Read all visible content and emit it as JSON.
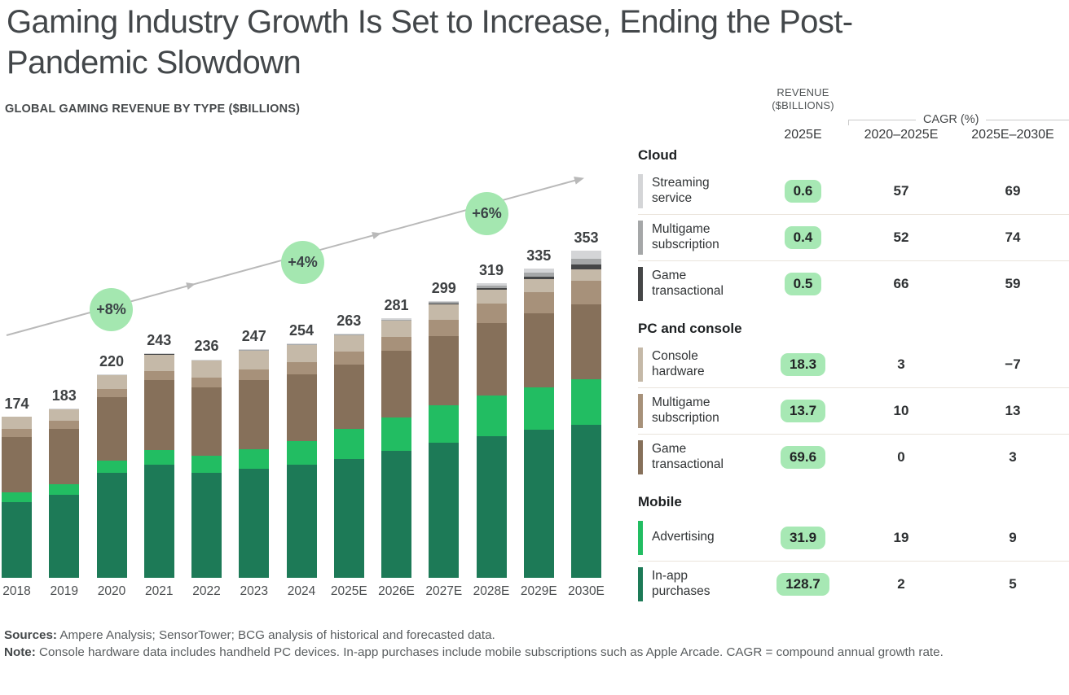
{
  "header": {
    "title_line1": "Gaming Industry Growth Is Set to Increase, Ending the Post-",
    "title_line2": "Pandemic Slowdown",
    "subtitle": "GLOBAL GAMING REVENUE BY TYPE ($BILLIONS)"
  },
  "chart_data": {
    "type": "bar",
    "subtype": "stacked-vertical",
    "title": "GLOBAL GAMING REVENUE BY TYPE ($BILLIONS)",
    "categories": [
      "2018",
      "2019",
      "2020",
      "2021",
      "2022",
      "2023",
      "2024",
      "2025E",
      "2026E",
      "2027E",
      "2028E",
      "2029E",
      "2030E"
    ],
    "totals": [
      "174",
      "183",
      "220",
      "243",
      "236",
      "247",
      "254",
      "263",
      "281",
      "299",
      "319",
      "335",
      "353"
    ],
    "series": [
      {
        "key": "in-app-purchases",
        "name": "In-app purchases",
        "group": "Mobile",
        "color": "#1d7a57",
        "values": [
          82,
          90,
          113,
          122,
          113,
          118,
          122,
          128.7,
          137,
          146,
          153,
          160,
          165
        ]
      },
      {
        "key": "advertising",
        "name": "Advertising",
        "group": "Mobile",
        "color": "#22bd62",
        "values": [
          10,
          11,
          13.5,
          16,
          19,
          21,
          26,
          31.9,
          36,
          40,
          44,
          46,
          49.5
        ]
      },
      {
        "key": "game-transactional-pc",
        "name": "Game transactional",
        "group": "PC and console",
        "color": "#86705a",
        "values": [
          60,
          60,
          69,
          76,
          74,
          75,
          72,
          69.6,
          72,
          75,
          78,
          80,
          81
        ]
      },
      {
        "key": "multigame-subscription-pc",
        "name": "Multigame subscription",
        "group": "PC and console",
        "color": "#a7917a",
        "values": [
          9,
          8.5,
          8.5,
          9.5,
          10,
          11,
          12.5,
          13.7,
          15.5,
          18,
          21,
          22.4,
          25
        ]
      },
      {
        "key": "console-hardware",
        "name": "Console hardware",
        "group": "PC and console",
        "color": "#c5b9a8",
        "values": [
          13,
          13,
          15.8,
          18.5,
          19.5,
          21,
          19.5,
          18.3,
          17,
          16,
          15,
          14,
          12.7
        ]
      },
      {
        "key": "game-transactional-cloud",
        "name": "Game transactional",
        "group": "Cloud",
        "color": "#454647",
        "values": [
          0,
          0.1,
          0.1,
          0.1,
          0.2,
          0.3,
          0.4,
          0.5,
          0.8,
          1.3,
          2,
          3.2,
          5.1
        ]
      },
      {
        "key": "multigame-subscription-cloud",
        "name": "Multigame subscription",
        "group": "Cloud",
        "color": "#a5a7a8",
        "values": [
          0,
          0,
          0.1,
          0.1,
          0.1,
          0.2,
          0.3,
          0.4,
          0.7,
          1.2,
          2.1,
          3.7,
          6.4
        ]
      },
      {
        "key": "streaming-service",
        "name": "Streaming service",
        "group": "Cloud",
        "color": "#d4d5d7",
        "values": [
          0,
          0.1,
          0.1,
          0.2,
          0.2,
          0.3,
          0.4,
          0.6,
          1,
          1.7,
          2.9,
          4.9,
          8.3
        ]
      }
    ],
    "growth_annotations": [
      {
        "label": "+8%",
        "near_year": "2020"
      },
      {
        "label": "+4%",
        "near_year": "2024"
      },
      {
        "label": "+6%",
        "near_year": "2028E"
      }
    ],
    "xlabel": "",
    "ylabel": "Revenue ($billions)",
    "ylim": [
      0,
      380
    ],
    "grid": false,
    "legend_position": "right-table",
    "trend_arrow": true
  },
  "table": {
    "header": {
      "revenue_line1": "REVENUE",
      "revenue_line2": "($BILLIONS)",
      "cagr": "CAGR (%)",
      "col_revenue_period": "2025E",
      "col_cagr1": "2020–2025E",
      "col_cagr2": "2025E–2030E"
    },
    "sections": [
      {
        "title": "Cloud",
        "rows": [
          {
            "label": "Streaming service",
            "swatch": "#d4d5d7",
            "revenue": "0.6",
            "cagr1": "57",
            "cagr2": "69"
          },
          {
            "label": "Multigame subscription",
            "swatch": "#a5a7a8",
            "revenue": "0.4",
            "cagr1": "52",
            "cagr2": "74"
          },
          {
            "label": "Game transactional",
            "swatch": "#454647",
            "revenue": "0.5",
            "cagr1": "66",
            "cagr2": "59"
          }
        ]
      },
      {
        "title": "PC and console",
        "rows": [
          {
            "label": "Console hardware",
            "swatch": "#c5b9a8",
            "revenue": "18.3",
            "cagr1": "3",
            "cagr2": "−7"
          },
          {
            "label": "Multigame subscription",
            "swatch": "#a7917a",
            "revenue": "13.7",
            "cagr1": "10",
            "cagr2": "13"
          },
          {
            "label": "Game transactional",
            "swatch": "#86705a",
            "revenue": "69.6",
            "cagr1": "0",
            "cagr2": "3"
          }
        ]
      },
      {
        "title": "Mobile",
        "rows": [
          {
            "label": "Advertising",
            "swatch": "#22bd62",
            "revenue": "31.9",
            "cagr1": "19",
            "cagr2": "9"
          },
          {
            "label": "In-app purchases",
            "swatch": "#1d7a57",
            "revenue": "128.7",
            "cagr1": "2",
            "cagr2": "5"
          }
        ]
      }
    ]
  },
  "footer": {
    "sources_label": "Sources:",
    "sources_text": "Ampere Analysis; SensorTower; BCG analysis of historical and forecasted data.",
    "note_label": "Note:",
    "note_text": "Console hardware data includes handheld PC devices. In-app purchases include mobile subscriptions such as Apple Arcade. CAGR = compound annual growth rate."
  },
  "colors": {
    "annotation_green": "#a4e7b0",
    "pill_green": "#a7e8b4",
    "arrow_gray": "#b9b9b9",
    "divider": "#eae4db"
  }
}
